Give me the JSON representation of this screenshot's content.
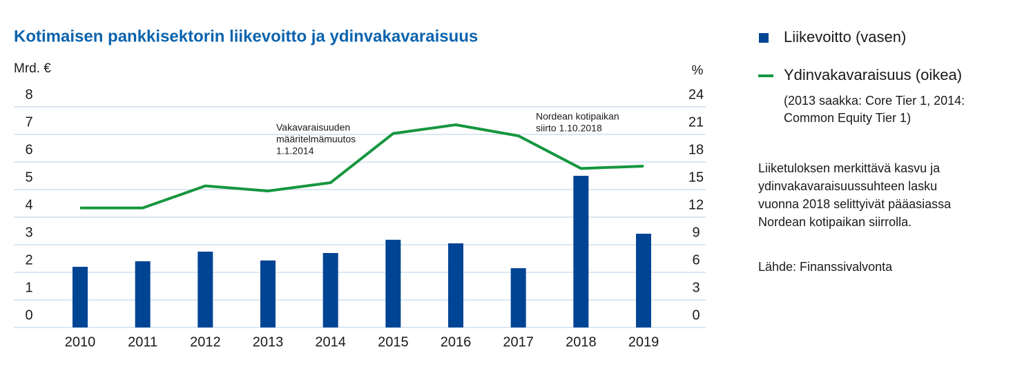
{
  "chart_data": {
    "type": "bar",
    "title": "Kotimaisen pankkisektorin liikevoitto ja ydinvakavaraisuus",
    "y_axis_label": "Mrd. €",
    "y2_axis_label": "%",
    "categories": [
      "2010",
      "2011",
      "2012",
      "2013",
      "2014",
      "2015",
      "2016",
      "2017",
      "2018",
      "2019"
    ],
    "series": [
      {
        "name": "Liikevoitto (vasen)",
        "type": "bar",
        "color": "#004494",
        "values": [
          2.2,
          2.4,
          2.75,
          2.43,
          2.7,
          3.18,
          3.05,
          2.15,
          5.5,
          3.4
        ]
      },
      {
        "name": "Ydinvakavaraisuus (oikea)",
        "type": "line",
        "axis": "y2",
        "color": "#16963f",
        "values": [
          13.0,
          13.0,
          15.4,
          14.85,
          15.75,
          21.1,
          22.05,
          20.85,
          17.3,
          17.55
        ]
      }
    ],
    "legend_note": [
      "(2013 saakka: Core Tier 1, 2014:",
      "Common Equity Tier 1)"
    ],
    "ylim": [
      0,
      8
    ],
    "yticks": [
      0,
      1,
      2,
      3,
      4,
      5,
      6,
      7,
      8
    ],
    "y2lim": [
      0,
      24
    ],
    "y2ticks": [
      0,
      3,
      6,
      9,
      12,
      15,
      18,
      21,
      24
    ],
    "grid": true,
    "annotations": [
      [
        "Vakavaraisuuden",
        "määritelmämuutos",
        "1.1.2014"
      ],
      [
        "Nordean kotipaikan",
        "siirto 1.10.2018"
      ]
    ],
    "notes": [
      "Liiketuloksen merkittävä kasvu ja",
      "ydinvakavaraisuussuhteen lasku",
      "vuonna 2018 selittyivät pääasiassa",
      "Nordean kotipaikan siirrolla."
    ],
    "source": "Lähde: Finanssivalvonta"
  }
}
